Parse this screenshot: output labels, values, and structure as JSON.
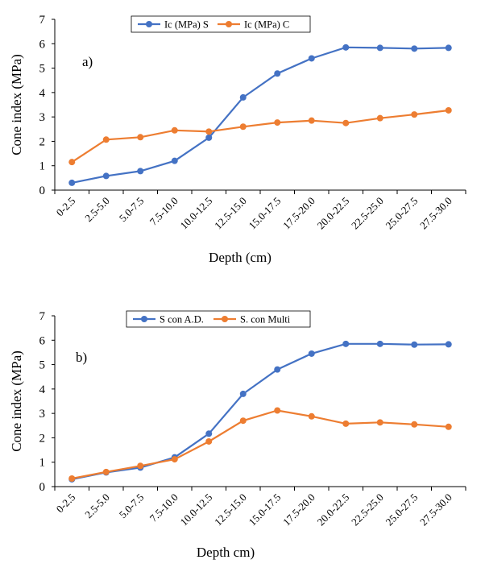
{
  "colors": {
    "blue": "#4472c4",
    "orange": "#ed7d31",
    "axis": "#000000"
  },
  "chart_data": [
    {
      "type": "line",
      "panel_label": "a)",
      "xlabel": "Depth (cm)",
      "ylabel": "Cone index (MPa)",
      "ylim": [
        0,
        7
      ],
      "yticks": [
        "0",
        "1",
        "2",
        "3",
        "4",
        "5",
        "6",
        "7"
      ],
      "grid": false,
      "legend_position": "top",
      "categories": [
        "0-2.5",
        "2.5-5.0",
        "5.0-7.5",
        "7.5-10.0",
        "10.0-12.5",
        "12.5-15.0",
        "15.0-17.5",
        "17.5-20.0",
        "20.0-22.5",
        "22.5-25.0",
        "25.0-27.5",
        "27.5-30.0"
      ],
      "series": [
        {
          "name": "Ic (MPa) S",
          "color": "#4472c4",
          "values": [
            0.3,
            0.58,
            0.78,
            1.2,
            2.15,
            3.8,
            4.78,
            5.4,
            5.85,
            5.83,
            5.8,
            5.83
          ]
        },
        {
          "name": "Ic (MPa) C",
          "color": "#ed7d31",
          "values": [
            1.15,
            2.07,
            2.17,
            2.45,
            2.4,
            2.6,
            2.77,
            2.85,
            2.75,
            2.95,
            3.1,
            3.27
          ]
        }
      ]
    },
    {
      "type": "line",
      "panel_label": "b)",
      "xlabel": "Depth cm)",
      "ylabel": "Cone index (MPa)",
      "ylim": [
        0,
        7
      ],
      "yticks": [
        "0",
        "1",
        "2",
        "3",
        "4",
        "5",
        "6",
        "7"
      ],
      "grid": false,
      "legend_position": "top",
      "categories": [
        "0-2.5",
        "2.5-5.0",
        "5.0-7.5",
        "7.5-10.0",
        "10.0-12.5",
        "12.5-15.0",
        "15.0-17.5",
        "17.5-20.0",
        "20.0-22.5",
        "22.5-25.0",
        "25.0-27.5",
        "27.5-30.0"
      ],
      "series": [
        {
          "name": "S con A.D.",
          "color": "#4472c4",
          "values": [
            0.3,
            0.58,
            0.78,
            1.2,
            2.17,
            3.8,
            4.8,
            5.45,
            5.85,
            5.85,
            5.82,
            5.83
          ]
        },
        {
          "name": "S. con Multi",
          "color": "#ed7d31",
          "values": [
            0.33,
            0.6,
            0.85,
            1.12,
            1.85,
            2.7,
            3.12,
            2.88,
            2.58,
            2.63,
            2.55,
            2.45
          ]
        }
      ]
    }
  ]
}
